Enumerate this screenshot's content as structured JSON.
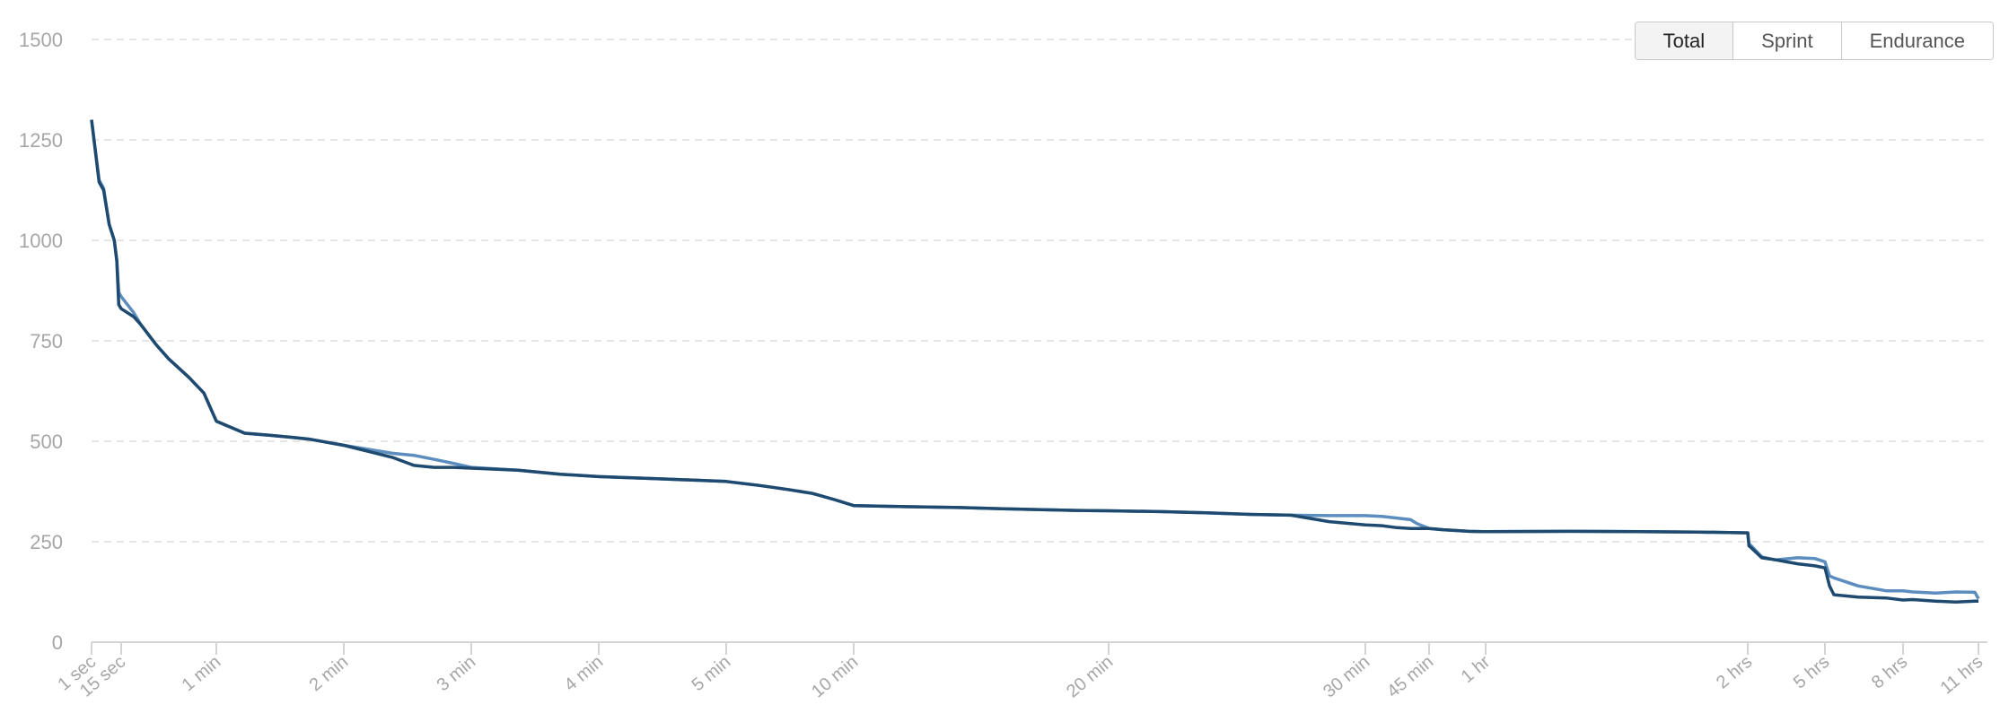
{
  "toggle": {
    "options": [
      "Total",
      "Sprint",
      "Endurance"
    ],
    "selected": "Total"
  },
  "colors": {
    "series_dark": "#1f4a70",
    "series_light": "#5b8dbf",
    "grid": "#dedede",
    "axis": "#d4d4d4",
    "tick_label": "#a6a6a6"
  },
  "chart_data": {
    "type": "line",
    "title": "",
    "xlabel": "",
    "ylabel": "",
    "ylim": [
      0,
      1500
    ],
    "yticks": [
      0,
      250,
      500,
      750,
      1000,
      1250,
      1500
    ],
    "ytick_labels": [
      "0",
      "250",
      "500",
      "750",
      "1000",
      "1250",
      "1500"
    ],
    "grid": "horizontal dashed",
    "legend": "none",
    "x_ticks": [
      "1 sec",
      "15 sec",
      "1 min",
      "2 min",
      "3 min",
      "4 min",
      "5 min",
      "10 min",
      "20 min",
      "30 min",
      "45 min",
      "1 hr",
      "2 hrs",
      "5 hrs",
      "8 hrs",
      "11 hrs"
    ],
    "x_tick_seconds": [
      1,
      15,
      60,
      120,
      180,
      240,
      300,
      600,
      1200,
      1800,
      2700,
      3600,
      7200,
      18000,
      28800,
      39600
    ],
    "series": [
      {
        "color": "#5b8dbf",
        "x": [
          1,
          2,
          3,
          5,
          8,
          10,
          12,
          15,
          18,
          20,
          25,
          30,
          40,
          50,
          60,
          70,
          80,
          90,
          100,
          120,
          140,
          150,
          160,
          170,
          180,
          200,
          220,
          240,
          270,
          300,
          360,
          420,
          480,
          540,
          600,
          700,
          800,
          900,
          1000,
          1100,
          1200,
          1300,
          1400,
          1500,
          1600,
          1700,
          1800,
          2000,
          2200,
          2400,
          2500,
          2700,
          2900,
          3100,
          3300,
          3600,
          4500,
          5400,
          6300,
          7200,
          7300,
          7500,
          8500,
          10000,
          13000,
          16000,
          18000,
          18500,
          19000,
          22000,
          26000,
          28800,
          30000,
          33000,
          36000,
          39000,
          39600
        ],
        "y": [
          1300,
          1150,
          1130,
          1040,
          1000,
          950,
          870,
          860,
          820,
          790,
          740,
          705,
          660,
          620,
          550,
          520,
          515,
          510,
          505,
          490,
          470,
          465,
          455,
          445,
          435,
          428,
          418,
          412,
          406,
          400,
          390,
          380,
          370,
          355,
          340,
          337,
          335,
          332,
          330,
          328,
          327,
          325,
          322,
          318,
          316,
          315,
          315,
          313,
          309,
          305,
          295,
          283,
          280,
          278,
          276,
          275,
          276,
          275,
          274,
          272,
          245,
          240,
          212,
          205,
          210,
          208,
          200,
          165,
          160,
          140,
          128,
          128,
          125,
          122,
          125,
          124,
          108
        ]
      },
      {
        "color": "#1f4a70",
        "x": [
          1,
          2,
          3,
          5,
          8,
          10,
          12,
          15,
          18,
          20,
          25,
          30,
          40,
          50,
          60,
          70,
          80,
          90,
          100,
          120,
          140,
          150,
          160,
          170,
          180,
          200,
          220,
          240,
          270,
          300,
          360,
          420,
          480,
          540,
          600,
          700,
          800,
          900,
          1000,
          1100,
          1200,
          1300,
          1400,
          1500,
          1600,
          1700,
          1800,
          2000,
          2200,
          2400,
          2500,
          2700,
          2900,
          3100,
          3300,
          3600,
          4500,
          5400,
          6300,
          7200,
          7300,
          7500,
          8500,
          10000,
          13000,
          16000,
          18000,
          18500,
          19000,
          22000,
          26000,
          28800,
          30000,
          33000,
          36000,
          39000,
          39600
        ],
        "y": [
          1300,
          1145,
          1125,
          1040,
          1000,
          950,
          840,
          830,
          810,
          790,
          740,
          705,
          660,
          620,
          550,
          520,
          515,
          510,
          505,
          490,
          460,
          440,
          435,
          435,
          433,
          428,
          418,
          412,
          406,
          400,
          390,
          380,
          370,
          355,
          340,
          337,
          335,
          332,
          330,
          328,
          327,
          325,
          322,
          318,
          316,
          300,
          292,
          290,
          285,
          283,
          283,
          283,
          280,
          278,
          276,
          275,
          276,
          275,
          274,
          272,
          240,
          235,
          210,
          205,
          195,
          190,
          185,
          140,
          118,
          112,
          110,
          105,
          106,
          102,
          100,
          102,
          102
        ]
      }
    ]
  }
}
